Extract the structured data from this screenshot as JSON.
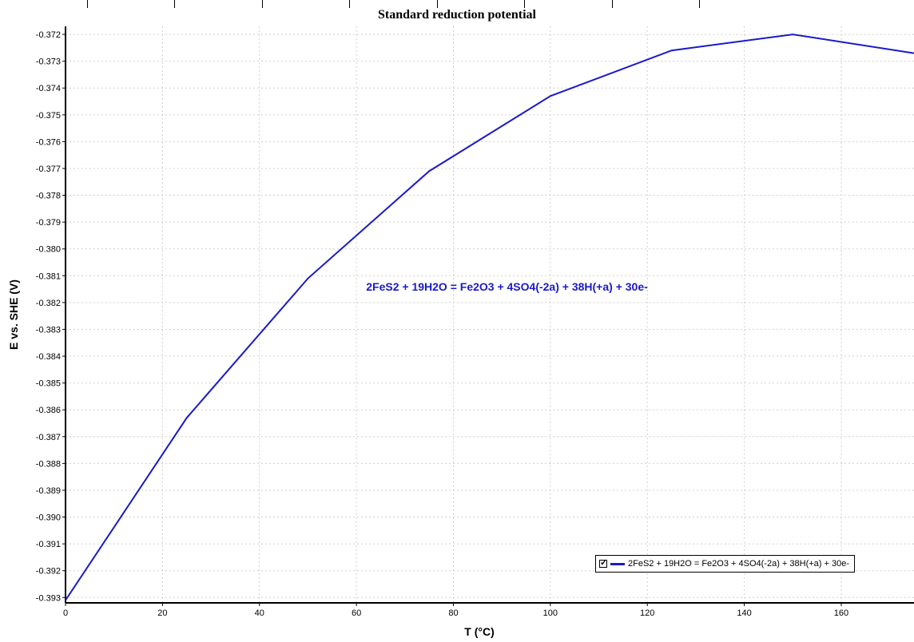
{
  "toolbar": {
    "tab_count": 8
  },
  "chart_data": {
    "type": "line",
    "title": "Standard reduction potential",
    "xlabel": "T (°C)",
    "ylabel": "E vs. SHE (V)",
    "xlim": [
      0,
      175
    ],
    "ylim": [
      -0.3932,
      -0.3717
    ],
    "xticks": [
      0,
      20,
      40,
      60,
      80,
      100,
      120,
      140,
      160
    ],
    "yticks": [
      -0.372,
      -0.373,
      -0.374,
      -0.375,
      -0.376,
      -0.377,
      -0.378,
      -0.379,
      -0.38,
      -0.381,
      -0.382,
      -0.383,
      -0.384,
      -0.385,
      -0.386,
      -0.387,
      -0.388,
      -0.389,
      -0.39,
      -0.391,
      -0.392,
      -0.393
    ],
    "ytick_labels": [
      "-0.372",
      "-0.373",
      "-0.374",
      "-0.375",
      "-0.376",
      "-0.377",
      "-0.378",
      "-0.379",
      "-0.380",
      "-0.381",
      "-0.382",
      "-0.383",
      "-0.384",
      "-0.385",
      "-0.386",
      "-0.387",
      "-0.388",
      "-0.389",
      "-0.390",
      "-0.391",
      "-0.392",
      "-0.393"
    ],
    "grid": true,
    "legend_position": "bottom-right",
    "annotation": {
      "text": "2FeS2 + 19H2O = Fe2O3 + 4SO4(-2a) + 38H(+a) + 30e-",
      "x": 62,
      "y": -0.38155
    },
    "series": [
      {
        "name": "2FeS2 + 19H2O = Fe2O3 + 4SO4(-2a) + 38H(+a) + 30e-",
        "color": "#1a1ac8",
        "x": [
          0,
          25,
          50,
          75,
          100,
          125,
          150,
          175
        ],
        "y": [
          -0.3931,
          -0.3863,
          -0.3811,
          -0.3771,
          -0.3743,
          -0.3726,
          -0.372,
          -0.3727
        ]
      }
    ]
  }
}
